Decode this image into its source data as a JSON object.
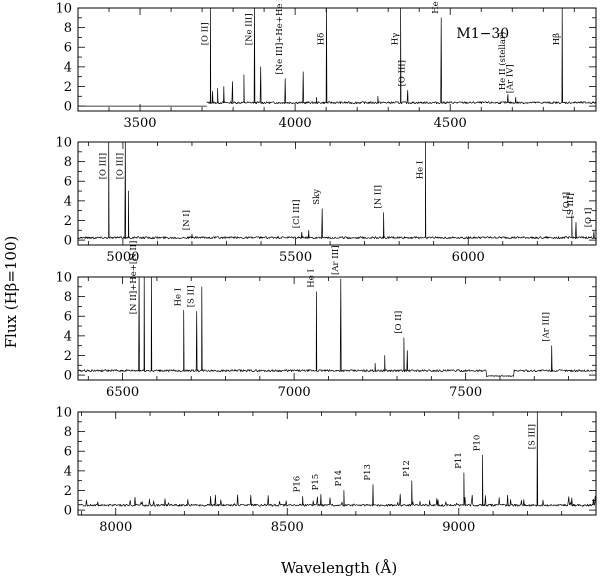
{
  "chart_data": {
    "type": "line",
    "object_label": "M1−30",
    "xlabel": "Wavelength (Å)",
    "ylabel": "Flux (Hβ=100)",
    "grid": false,
    "panels": [
      {
        "xlim": [
          3300,
          4970
        ],
        "ylim": [
          -0.5,
          10
        ],
        "xticks": [
          3500,
          4000,
          4500
        ],
        "yticks": [
          0,
          2,
          4,
          6,
          8,
          10
        ],
        "start": 3715,
        "continuum": 0.35,
        "lines": [
          {
            "x": 3727,
            "y": 10.5,
            "label": "[O II]"
          },
          {
            "x": 3734,
            "y": 1.5
          },
          {
            "x": 3750,
            "y": 1.8
          },
          {
            "x": 3770,
            "y": 2.0
          },
          {
            "x": 3798,
            "y": 2.5
          },
          {
            "x": 3835,
            "y": 3.2
          },
          {
            "x": 3869,
            "y": 10.5,
            "label": "[Ne III]"
          },
          {
            "x": 3889,
            "y": 4.0
          },
          {
            "x": 3968,
            "y": 2.8,
            "label": "[Ne III]+He+He I"
          },
          {
            "x": 4026,
            "y": 3.5
          },
          {
            "x": 4069,
            "y": 0.9
          },
          {
            "x": 4101,
            "y": 10.5,
            "label": "Hδ"
          },
          {
            "x": 4267,
            "y": 1.0
          },
          {
            "x": 4340,
            "y": 10.5,
            "label": "Hγ"
          },
          {
            "x": 4363,
            "y": 1.6,
            "label": "[O III]"
          },
          {
            "x": 4471,
            "y": 9.0,
            "label": "He I"
          },
          {
            "x": 4686,
            "y": 1.2,
            "label": "He II (stellar)"
          },
          {
            "x": 4711,
            "y": 0.9,
            "label": "[Ar IV]"
          },
          {
            "x": 4861,
            "y": 10.5,
            "label": "Hβ"
          }
        ]
      },
      {
        "xlim": [
          4870,
          6370
        ],
        "ylim": [
          -0.5,
          10
        ],
        "xticks": [
          5000,
          5500,
          6000
        ],
        "yticks": [
          0,
          2,
          4,
          6,
          8,
          10
        ],
        "start": 4870,
        "continuum": 0.25,
        "lines": [
          {
            "x": 4959,
            "y": 10.5,
            "label": "[O III]"
          },
          {
            "x": 5007,
            "y": 10.5,
            "label": "[O III]"
          },
          {
            "x": 5016,
            "y": 5.0
          },
          {
            "x": 5200,
            "y": 0.6,
            "label": "[N I]"
          },
          {
            "x": 5518,
            "y": 0.8,
            "label": "[Cl III]"
          },
          {
            "x": 5538,
            "y": 1.0
          },
          {
            "x": 5577,
            "y": 3.2,
            "label": "Sky"
          },
          {
            "x": 5755,
            "y": 2.8,
            "label": "[N II]"
          },
          {
            "x": 5876,
            "y": 10.5,
            "label": "He I"
          },
          {
            "x": 6300,
            "y": 2.5,
            "label": "[O I]"
          },
          {
            "x": 6312,
            "y": 1.8,
            "label": "[S III]"
          },
          {
            "x": 6364,
            "y": 0.9,
            "label": "[O I]"
          }
        ]
      },
      {
        "xlim": [
          6370,
          7880
        ],
        "ylim": [
          -0.5,
          10
        ],
        "xticks": [
          6500,
          7000,
          7500
        ],
        "yticks": [
          0,
          2,
          4,
          6,
          8,
          10
        ],
        "start": 6370,
        "continuum": 0.45,
        "lines": [
          {
            "x": 6548,
            "y": 10.5,
            "label": "[N II]+He+[N II]"
          },
          {
            "x": 6563,
            "y": 10.5
          },
          {
            "x": 6584,
            "y": 10.5
          },
          {
            "x": 6678,
            "y": 6.6,
            "label": "He I"
          },
          {
            "x": 6716,
            "y": 6.5,
            "label": "[S II]"
          },
          {
            "x": 6731,
            "y": 9.0
          },
          {
            "x": 7065,
            "y": 8.5,
            "label": "He I"
          },
          {
            "x": 7136,
            "y": 9.8,
            "label": "[Ar III]"
          },
          {
            "x": 7236,
            "y": 1.2
          },
          {
            "x": 7264,
            "y": 2.0
          },
          {
            "x": 7320,
            "y": 3.8,
            "label": "[O II]"
          },
          {
            "x": 7330,
            "y": 2.5
          },
          {
            "x": 7751,
            "y": 3.0,
            "label": "[Ar III]"
          }
        ]
      },
      {
        "xlim": [
          7890,
          9400
        ],
        "ylim": [
          -0.5,
          10
        ],
        "xticks": [
          8000,
          8500,
          9000
        ],
        "yticks": [
          0,
          2,
          4,
          6,
          8,
          10
        ],
        "start": 7890,
        "continuum": 0.5,
        "lines": [
          {
            "x": 8545,
            "y": 1.4,
            "label": "P16"
          },
          {
            "x": 8598,
            "y": 1.6,
            "label": "P15"
          },
          {
            "x": 8665,
            "y": 2.0,
            "label": "P14"
          },
          {
            "x": 8750,
            "y": 2.6,
            "label": "P13"
          },
          {
            "x": 8863,
            "y": 3.0,
            "label": "P12"
          },
          {
            "x": 9015,
            "y": 3.8,
            "label": "P11"
          },
          {
            "x": 9069,
            "y": 5.6,
            "label": "P10"
          },
          {
            "x": 9229,
            "y": 10.5,
            "label": "[S III]"
          },
          {
            "x": 9531,
            "y": 7.2
          }
        ]
      }
    ]
  }
}
